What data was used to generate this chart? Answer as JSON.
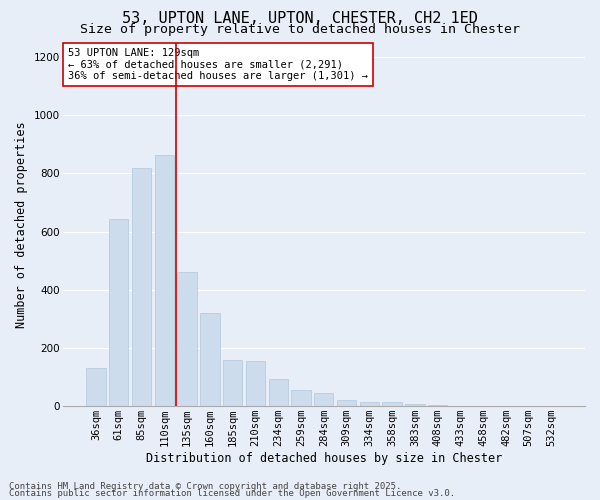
{
  "title": "53, UPTON LANE, UPTON, CHESTER, CH2 1ED",
  "subtitle": "Size of property relative to detached houses in Chester",
  "xlabel": "Distribution of detached houses by size in Chester",
  "ylabel": "Number of detached properties",
  "categories": [
    "36sqm",
    "61sqm",
    "85sqm",
    "110sqm",
    "135sqm",
    "160sqm",
    "185sqm",
    "210sqm",
    "234sqm",
    "259sqm",
    "284sqm",
    "309sqm",
    "334sqm",
    "358sqm",
    "383sqm",
    "408sqm",
    "433sqm",
    "458sqm",
    "482sqm",
    "507sqm",
    "532sqm"
  ],
  "values": [
    130,
    645,
    820,
    865,
    460,
    320,
    160,
    155,
    95,
    55,
    45,
    20,
    15,
    15,
    8,
    3,
    2,
    1,
    1,
    1,
    0
  ],
  "bar_color": "#ccdcec",
  "bar_edge_color": "#b0c8dc",
  "vline_x_index": 4,
  "vline_color": "#cc0000",
  "annotation_text": "53 UPTON LANE: 129sqm\n← 63% of detached houses are smaller (2,291)\n36% of semi-detached houses are larger (1,301) →",
  "annotation_box_color": "#ffffff",
  "annotation_box_edge": "#cc0000",
  "ylim": [
    0,
    1250
  ],
  "yticks": [
    0,
    200,
    400,
    600,
    800,
    1000,
    1200
  ],
  "background_color": "#e8eef8",
  "grid_color": "#ffffff",
  "footer_line1": "Contains HM Land Registry data © Crown copyright and database right 2025.",
  "footer_line2": "Contains public sector information licensed under the Open Government Licence v3.0.",
  "title_fontsize": 11,
  "subtitle_fontsize": 9.5,
  "axis_label_fontsize": 8.5,
  "tick_fontsize": 7.5,
  "annotation_fontsize": 7.5,
  "footer_fontsize": 6.5
}
